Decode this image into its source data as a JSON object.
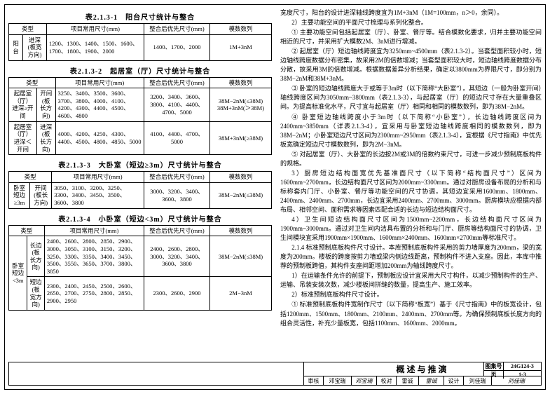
{
  "tables": {
    "t1": {
      "title": "表2.1.3-1　阳台尺寸统计与整合",
      "headers": [
        "类型",
        "",
        "项目常用尺寸(mm)",
        "整合后优先尺寸(mm)",
        "模数数列"
      ],
      "rows": [
        [
          "阳台",
          "进深\n(板宽方向)",
          "1200、1300、1400、1500、1600、1700、1800、1900、2000",
          "1400、1700、2000",
          "1M+3nM"
        ]
      ]
    },
    "t2": {
      "title": "表2.1.3-2　起居室（厅）尺寸统计与整合",
      "headers": [
        "类型",
        "",
        "项目常用尺寸(mm)",
        "整合后优先尺寸(mm)",
        "模数数列"
      ],
      "rows": [
        [
          "起居室（厅）\n进深≥开间",
          "开间\n(板长方向)",
          "3250、3400、3500、3600、3700、3800、4000、4100、4200、4300、4400、4500、4600、4800",
          "3200、3400、3600、3800、4100、4400、4700、5000",
          "38M−2nM(≤38M)\n38M+3nM(＞38M)"
        ],
        [
          "起居室（厅）\n进深＜开间",
          "进深\n(板长方向)",
          "4000、4200、4250、4300、4400、4500、4800、4850、5000",
          "4100、4400、4700、5000",
          "38M+3nM(≥38M)"
        ]
      ]
    },
    "t3": {
      "title": "表2.1.3-3　大卧室（短边≥3m）尺寸统计与整合",
      "headers": [
        "类型",
        "",
        "项目常用尺寸(mm)",
        "整合后优先尺寸(mm)",
        "模数数列"
      ],
      "rows": [
        [
          "卧室\n短边≥3m",
          "开间\n(板长方向)",
          "3050、3100、3200、3250、3300、3400、3450、3500、3600、3800",
          "3000、3200、3400、3600、3800",
          "38M−2nM(≤38M)"
        ]
      ]
    },
    "t4": {
      "title": "表2.1.3-4　小卧室（短边<3m）尺寸统计与整合",
      "headers": [
        "类型",
        "",
        "项目常用尺寸(mm)",
        "整合后优先尺寸(mm)",
        "模数数列"
      ],
      "rows": [
        [
          "",
          "长边\n(板长方向)",
          "2400、2600、2800、2850、2900、3000、3050、3100、3150、3200、3250、3300、3350、3400、3450、3500、3550、3650、3700、3800、3850",
          "2400、2600、2800、3000、3200、3400、3600、3800",
          "38M−2nM(≤38M)"
        ],
        [
          "",
          "短边\n(板宽方向)",
          "2300、2400、2450、2500、2600、2650、2700、2750、2800、2850、2900、2950",
          "2300、2600、2900",
          "2M−3nM"
        ]
      ],
      "rowSpanLabel": "卧室\n短边<3m"
    }
  },
  "right": [
    "宽度尺寸，阳台的设计进深轴线跨度宜为1M+3nM（1M=100mm，n＞0，余同）。",
    "2）主要功能空间的平面尺寸梳理与系列化整合。",
    "① 主要功能空间包括起居室（厅）、卧室、餐厅等。结合模数化要求，归并主要功能空间相近的尺寸，并采用扩大模数2M、3nM进行增减。",
    "② 起居室（厅）短边轴线跨度宜为3250mm~4500mm（表2.1.3-2）。当套型面积较小时，短边轴线跨度数据分布密集，故采用2M的倍数增减；当套型面积较大时，短边轴线跨度数据分布分散，故采用3M的倍数增减。根据数据差异分析结果，确定以3800mm为界限尺寸，即分别为38M−2nM和38M+3nM。",
    "③ 卧室的短边轴线跨度大于或等于3m时（以下简称“大卧室”），其短边（一般为卧室开间）轴线跨度区间为3050mm~3800mm（表2.1.3-3），与起居室（厅）的短边尺寸存在大量重叠区间。为提高标准化水平，尺寸宜与起居室（厅）相同和相同的模数数列，即为38M−2nM。",
    "④ 卧室短边轴线跨度小于3m时（以下简称“小卧室”），长边轴线跨度区间为2400mm~3850mm（详表2.1.3-4），宜采用与卧室短边轴线跨度相同的模数数列，即为38M−2nM；小卧室短边尺寸区间为2300mm~2950mm（表2.1.3-4），宜根据《尺寸指南》中优先板宽确定短边尺寸模数数列，即为2M−3nM。",
    "⑤ 对起居室（厅）、大卧室的长边按2M或3M的倍数约束尺寸，可进一步减少预制底板构件的规格。",
    "3）厨房短边结构面宽优先基准面尺寸（以下简称“结构面尺寸”）区间为1600mm~2700mm，长边结构面尺寸区间为2000mm~3300mm。通过对厨房设备布局的分析和与标称套内门厅、小卧室、餐厅等功能空间的尺寸协调，其短边宜采用1600mm、1800mm、2400mm、2400mm、2700mm，长边宜采用2400mm、2700mm、3000mm。厨房模块应根据内部布局、相邻空间、面积需求等因素匹配合适的长边与短边结构面尺寸。",
    "4）卫生间短边结构面尺寸区间为1500mm~2200mm，长边结构面尺寸区间为1900mm~3000mm。通过对卫生间内洁具布置的分析和与门厅、厨房等结构面尺寸的协调，卫生间模块宜采用1900mm×1900mm、1600mm×2400mm、1600mm×2700mm等标准尺寸。",
    "2.1.4 标准预制底板构件尺寸设计。本库预制底板构件采用的剪力墙厚度为200mm，梁的宽度为200mm。楼板的跨度按剪力墙或梁内侧边线距离，预制构件不进入支座。因此，本库中推荐的预制板跨值，其构件支座间距增加200mm为轴线跨度尺寸。",
    "1）在运输条件允许的前提下，预制板应设计宜采用大尺寸构件，以减少预制构件的生产、运输、吊装安装次数，减少楼板间拼缝的数量，提高生产、施工效率。",
    "2）标准预制底板构件尺寸设计。",
    "① 标准预制底板构件宽制作尺寸（以下简称“板宽”）基于《尺寸指南》中的板宽设计，包括1200mm、1500mm、1800mm、2100mm、2400mm、2700mm等。为确保预制底板长度方向的组合灵活性，补充少量板宽，包括1100mm、1600mm、2000mm。"
  ],
  "footer": {
    "title": "概述与推演",
    "sheet_lab": "图集号",
    "sheet_val": "24G124-3",
    "page_lab": "页",
    "page_val": "1-3",
    "cells": [
      "审核",
      "邓宝瑞",
      "",
      "校对",
      "雷诚",
      "",
      "设计",
      "刘佳瑞",
      ""
    ]
  }
}
